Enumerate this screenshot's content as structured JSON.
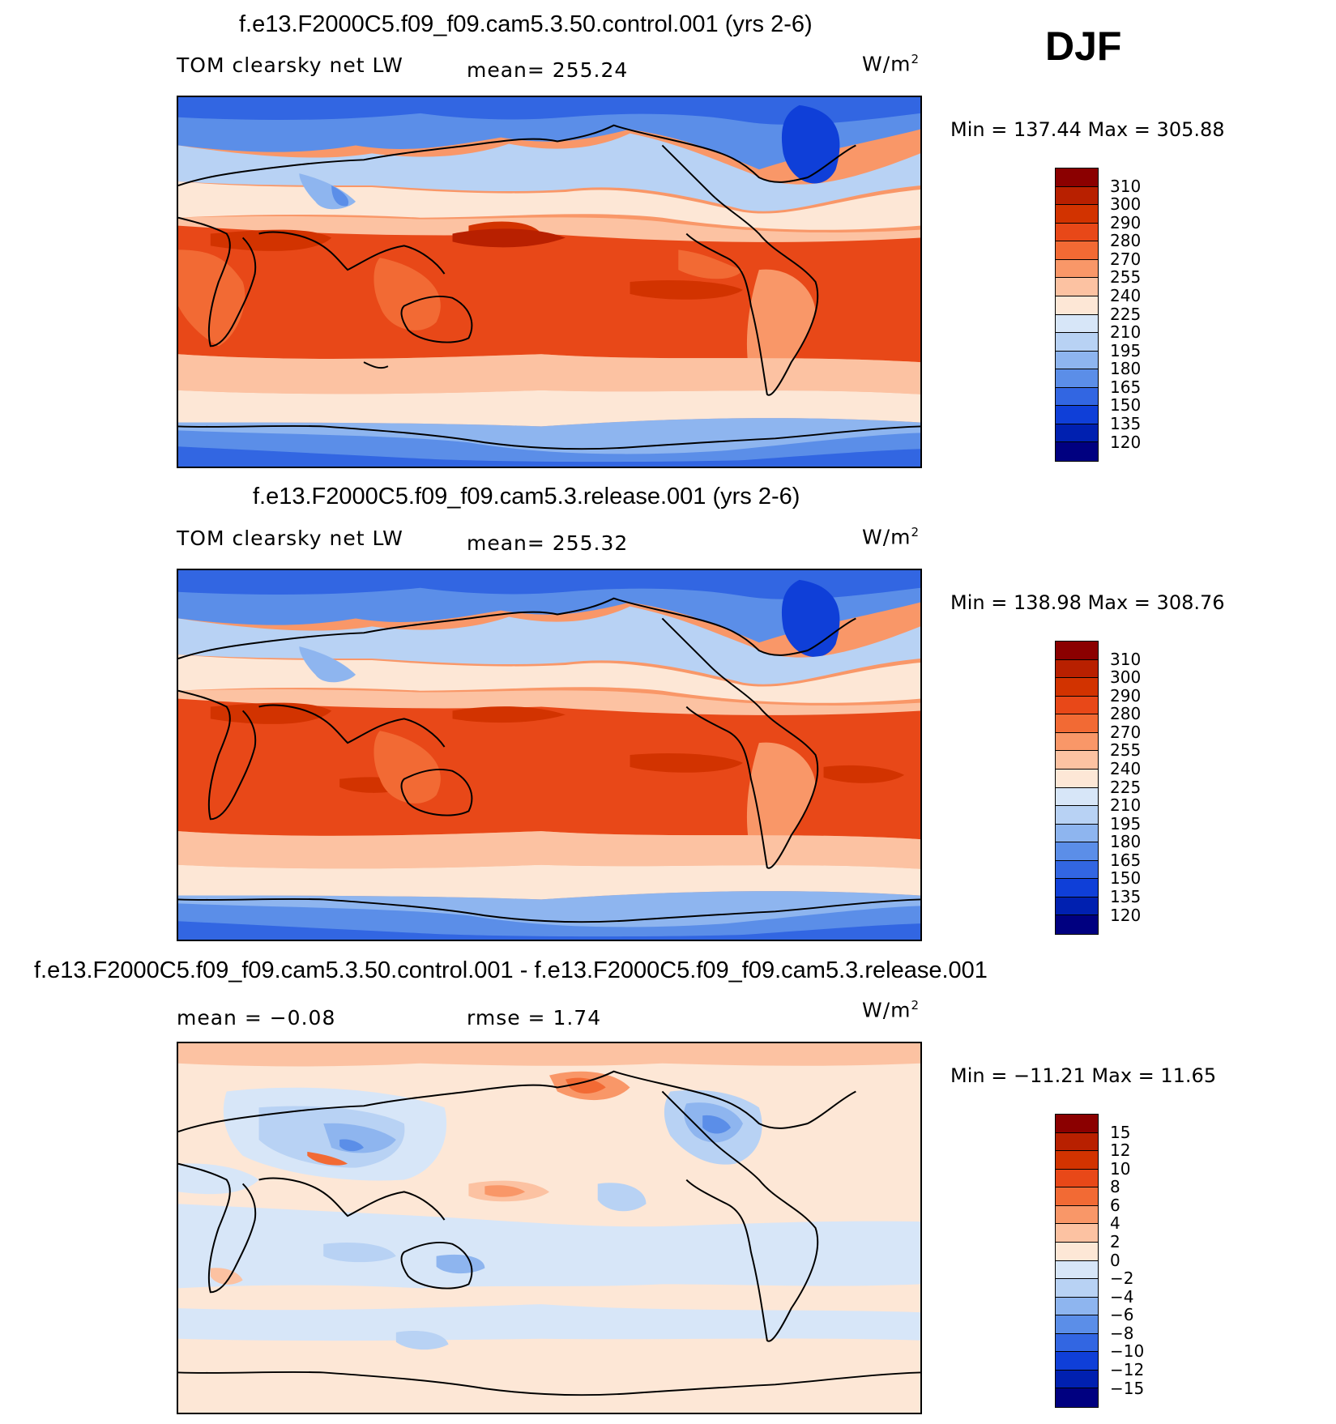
{
  "season": "DJF",
  "panels": [
    {
      "title": "f.e13.F2000C5.f09_f09.cam5.3.50.control.001 (yrs 2-6)",
      "left_label": "TOM clearsky net LW",
      "mid_label": "mean= 255.24",
      "units": "W/m",
      "units_sup": "2",
      "minmax": "Min = 137.44 Max = 305.88",
      "colorbar_labels": [
        "310",
        "300",
        "290",
        "280",
        "270",
        "255",
        "240",
        "225",
        "210",
        "195",
        "180",
        "165",
        "150",
        "135",
        "120"
      ],
      "colors": [
        "#8b0000",
        "#b82000",
        "#d23300",
        "#e84818",
        "#f26a34",
        "#f99768",
        "#fcc2a2",
        "#fde7d6",
        "#d7e6f8",
        "#b8d2f4",
        "#8eb5ef",
        "#5b8ee8",
        "#3266e2",
        "#0f3fd8",
        "#0020b0",
        "#000080"
      ]
    },
    {
      "title": "f.e13.F2000C5.f09_f09.cam5.3.release.001 (yrs 2-6)",
      "left_label": "TOM clearsky net LW",
      "mid_label": "mean= 255.32",
      "units": "W/m",
      "units_sup": "2",
      "minmax": "Min = 138.98 Max = 308.76",
      "colorbar_labels": [
        "310",
        "300",
        "290",
        "280",
        "270",
        "255",
        "240",
        "225",
        "210",
        "195",
        "180",
        "165",
        "150",
        "135",
        "120"
      ],
      "colors": [
        "#8b0000",
        "#b82000",
        "#d23300",
        "#e84818",
        "#f26a34",
        "#f99768",
        "#fcc2a2",
        "#fde7d6",
        "#d7e6f8",
        "#b8d2f4",
        "#8eb5ef",
        "#5b8ee8",
        "#3266e2",
        "#0f3fd8",
        "#0020b0",
        "#000080"
      ]
    },
    {
      "title": "f.e13.F2000C5.f09_f09.cam5.3.50.control.001 - f.e13.F2000C5.f09_f09.cam5.3.release.001",
      "left_label": "mean = −0.08",
      "mid_label": "rmse = 1.74",
      "units": "W/m",
      "units_sup": "2",
      "minmax": "Min = −11.21 Max = 11.65",
      "colorbar_labels": [
        "15",
        "12",
        "10",
        "8",
        "6",
        "4",
        "2",
        "0",
        "−2",
        "−4",
        "−6",
        "−8",
        "−10",
        "−12",
        "−15"
      ],
      "colors": [
        "#8b0000",
        "#b82000",
        "#d23300",
        "#e84818",
        "#f26a34",
        "#f99768",
        "#fcc2a2",
        "#fde7d6",
        "#d7e6f8",
        "#b8d2f4",
        "#8eb5ef",
        "#5b8ee8",
        "#3266e2",
        "#0f3fd8",
        "#0020b0",
        "#000080"
      ]
    }
  ]
}
